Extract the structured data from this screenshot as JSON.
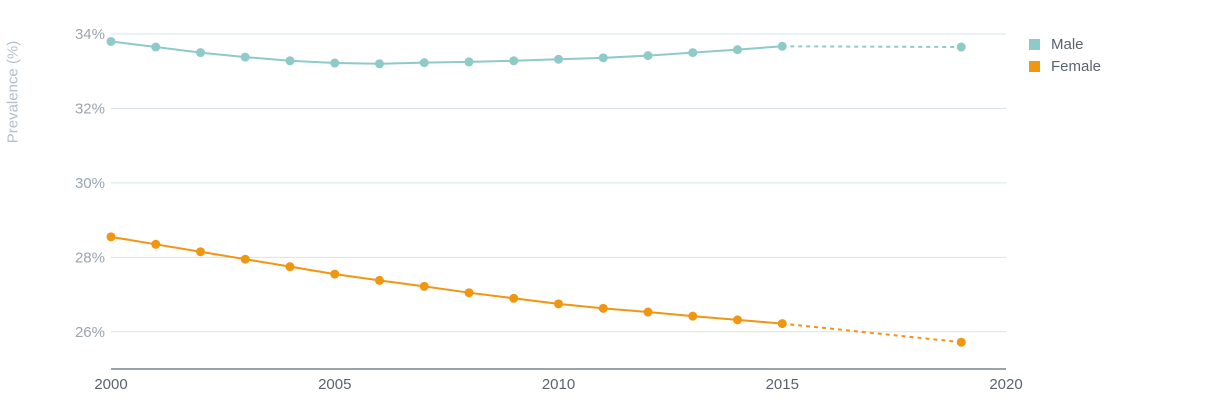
{
  "chart_data": {
    "type": "line",
    "ylabel": "Prevalence (%)",
    "xlim": [
      2000,
      2020
    ],
    "ylim": [
      25,
      34
    ],
    "x_ticks": [
      "2000",
      "2005",
      "2010",
      "2015",
      "2020"
    ],
    "y_ticks": [
      "26%",
      "28%",
      "30%",
      "32%",
      "34%"
    ],
    "grid": "horizontal",
    "legend_position": "top-right",
    "series": [
      {
        "name": "Male",
        "color": "#8ecac8",
        "x": [
          2000,
          2001,
          2002,
          2003,
          2004,
          2005,
          2006,
          2007,
          2008,
          2009,
          2010,
          2011,
          2012,
          2013,
          2014,
          2015,
          2019
        ],
        "values": [
          33.8,
          33.65,
          33.5,
          33.38,
          33.28,
          33.22,
          33.2,
          33.23,
          33.25,
          33.28,
          33.32,
          33.36,
          33.42,
          33.5,
          33.58,
          33.67,
          33.65
        ],
        "projected_from_index": 15
      },
      {
        "name": "Female",
        "color": "#f09610",
        "x": [
          2000,
          2001,
          2002,
          2003,
          2004,
          2005,
          2006,
          2007,
          2008,
          2009,
          2010,
          2011,
          2012,
          2013,
          2014,
          2015,
          2019
        ],
        "values": [
          28.55,
          28.35,
          28.15,
          27.95,
          27.75,
          27.55,
          27.38,
          27.22,
          27.05,
          26.9,
          26.75,
          26.63,
          26.53,
          26.42,
          26.32,
          26.22,
          25.72
        ],
        "projected_from_index": 15
      }
    ]
  }
}
